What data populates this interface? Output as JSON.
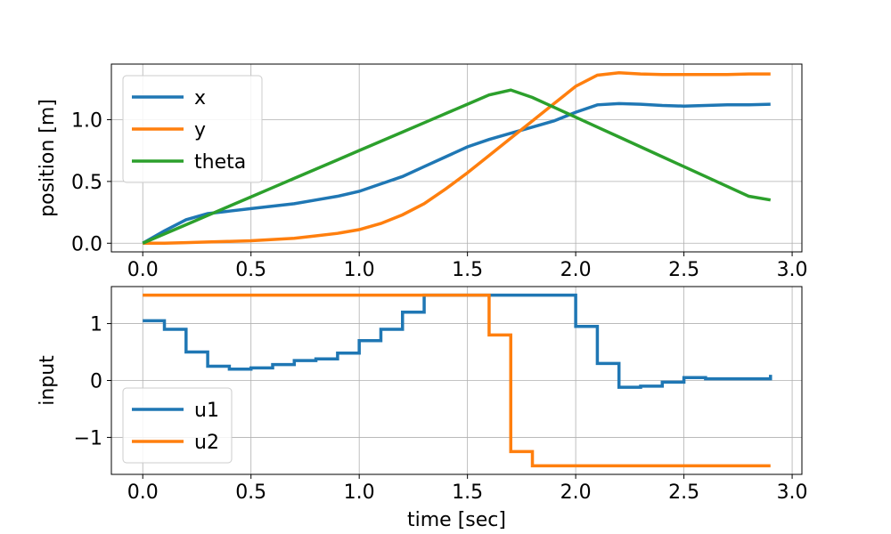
{
  "chart_data": [
    {
      "type": "line",
      "ylabel": "position [m]",
      "xlim": [
        -0.145,
        3.045
      ],
      "ylim": [
        -0.07,
        1.45
      ],
      "xticks": [
        0.0,
        0.5,
        1.0,
        1.5,
        2.0,
        2.5,
        3.0
      ],
      "xtick_labels": [
        "0.0",
        "0.5",
        "1.0",
        "1.5",
        "2.0",
        "2.5",
        "3.0"
      ],
      "yticks": [
        0.0,
        0.5,
        1.0
      ],
      "ytick_labels": [
        "0.0",
        "0.5",
        "1.0"
      ],
      "grid": true,
      "legend_position": "top-left",
      "series": [
        {
          "name": "x",
          "color": "#1f77b4",
          "step": false,
          "x": [
            0,
            0.1,
            0.2,
            0.3,
            0.4,
            0.5,
            0.6,
            0.7,
            0.8,
            0.9,
            1.0,
            1.1,
            1.2,
            1.3,
            1.4,
            1.5,
            1.6,
            1.7,
            1.8,
            1.9,
            2.0,
            2.1,
            2.2,
            2.3,
            2.4,
            2.5,
            2.6,
            2.7,
            2.8,
            2.9
          ],
          "values": [
            0.0,
            0.1,
            0.19,
            0.24,
            0.26,
            0.28,
            0.3,
            0.32,
            0.35,
            0.38,
            0.42,
            0.48,
            0.54,
            0.62,
            0.7,
            0.78,
            0.84,
            0.89,
            0.94,
            0.99,
            1.06,
            1.12,
            1.13,
            1.125,
            1.115,
            1.11,
            1.115,
            1.12,
            1.12,
            1.125
          ]
        },
        {
          "name": "y",
          "color": "#ff7f0e",
          "step": false,
          "x": [
            0,
            0.1,
            0.2,
            0.3,
            0.4,
            0.5,
            0.6,
            0.7,
            0.8,
            0.9,
            1.0,
            1.1,
            1.2,
            1.3,
            1.4,
            1.5,
            1.6,
            1.7,
            1.8,
            1.9,
            2.0,
            2.1,
            2.2,
            2.3,
            2.4,
            2.5,
            2.6,
            2.7,
            2.8,
            2.9
          ],
          "values": [
            0.0,
            0.0,
            0.005,
            0.01,
            0.015,
            0.02,
            0.03,
            0.04,
            0.06,
            0.08,
            0.11,
            0.16,
            0.23,
            0.32,
            0.44,
            0.57,
            0.71,
            0.85,
            0.99,
            1.13,
            1.27,
            1.36,
            1.38,
            1.37,
            1.365,
            1.365,
            1.365,
            1.365,
            1.37,
            1.37
          ]
        },
        {
          "name": "theta",
          "color": "#2ca02c",
          "step": false,
          "x": [
            0,
            0.1,
            0.2,
            0.3,
            0.4,
            0.5,
            0.6,
            0.7,
            0.8,
            0.9,
            1.0,
            1.1,
            1.2,
            1.3,
            1.4,
            1.5,
            1.6,
            1.7,
            1.8,
            1.9,
            2.0,
            2.1,
            2.2,
            2.3,
            2.4,
            2.5,
            2.6,
            2.7,
            2.8,
            2.9
          ],
          "values": [
            0.0,
            0.075,
            0.15,
            0.225,
            0.3,
            0.375,
            0.45,
            0.525,
            0.6,
            0.675,
            0.75,
            0.825,
            0.9,
            0.975,
            1.05,
            1.125,
            1.2,
            1.24,
            1.18,
            1.1,
            1.02,
            0.94,
            0.86,
            0.78,
            0.7,
            0.62,
            0.54,
            0.46,
            0.38,
            0.35
          ]
        }
      ]
    },
    {
      "type": "line",
      "xlabel": "time [sec]",
      "ylabel": "input",
      "xlim": [
        -0.145,
        3.045
      ],
      "ylim": [
        -1.65,
        1.65
      ],
      "xticks": [
        0.0,
        0.5,
        1.0,
        1.5,
        2.0,
        2.5,
        3.0
      ],
      "xtick_labels": [
        "0.0",
        "0.5",
        "1.0",
        "1.5",
        "2.0",
        "2.5",
        "3.0"
      ],
      "yticks": [
        1,
        0,
        -1
      ],
      "ytick_labels": [
        "1",
        "0",
        "−1"
      ],
      "grid": true,
      "legend_position": "bottom-left",
      "series": [
        {
          "name": "u1",
          "color": "#1f77b4",
          "step": true,
          "x": [
            0,
            0.1,
            0.2,
            0.3,
            0.4,
            0.5,
            0.6,
            0.7,
            0.8,
            0.9,
            1.0,
            1.1,
            1.2,
            1.3,
            1.4,
            1.5,
            1.6,
            1.7,
            1.8,
            1.9,
            2.0,
            2.1,
            2.2,
            2.3,
            2.4,
            2.5,
            2.6,
            2.7,
            2.8,
            2.9
          ],
          "values": [
            1.05,
            0.9,
            0.5,
            0.25,
            0.2,
            0.22,
            0.28,
            0.35,
            0.38,
            0.48,
            0.7,
            0.9,
            1.2,
            1.5,
            1.5,
            1.5,
            1.5,
            1.5,
            1.5,
            1.5,
            0.95,
            0.3,
            -0.12,
            -0.1,
            -0.03,
            0.05,
            0.03,
            0.03,
            0.03,
            0.1
          ]
        },
        {
          "name": "u2",
          "color": "#ff7f0e",
          "step": true,
          "x": [
            0,
            0.1,
            0.2,
            0.3,
            0.4,
            0.5,
            0.6,
            0.7,
            0.8,
            0.9,
            1.0,
            1.1,
            1.2,
            1.3,
            1.4,
            1.5,
            1.6,
            1.7,
            1.8,
            1.9,
            2.0,
            2.1,
            2.2,
            2.3,
            2.4,
            2.5,
            2.6,
            2.7,
            2.8,
            2.9
          ],
          "values": [
            1.5,
            1.5,
            1.5,
            1.5,
            1.5,
            1.5,
            1.5,
            1.5,
            1.5,
            1.5,
            1.5,
            1.5,
            1.5,
            1.5,
            1.5,
            1.5,
            0.8,
            -1.25,
            -1.5,
            -1.5,
            -1.5,
            -1.5,
            -1.5,
            -1.5,
            -1.5,
            -1.5,
            -1.5,
            -1.5,
            -1.5,
            -1.5
          ]
        }
      ]
    }
  ]
}
